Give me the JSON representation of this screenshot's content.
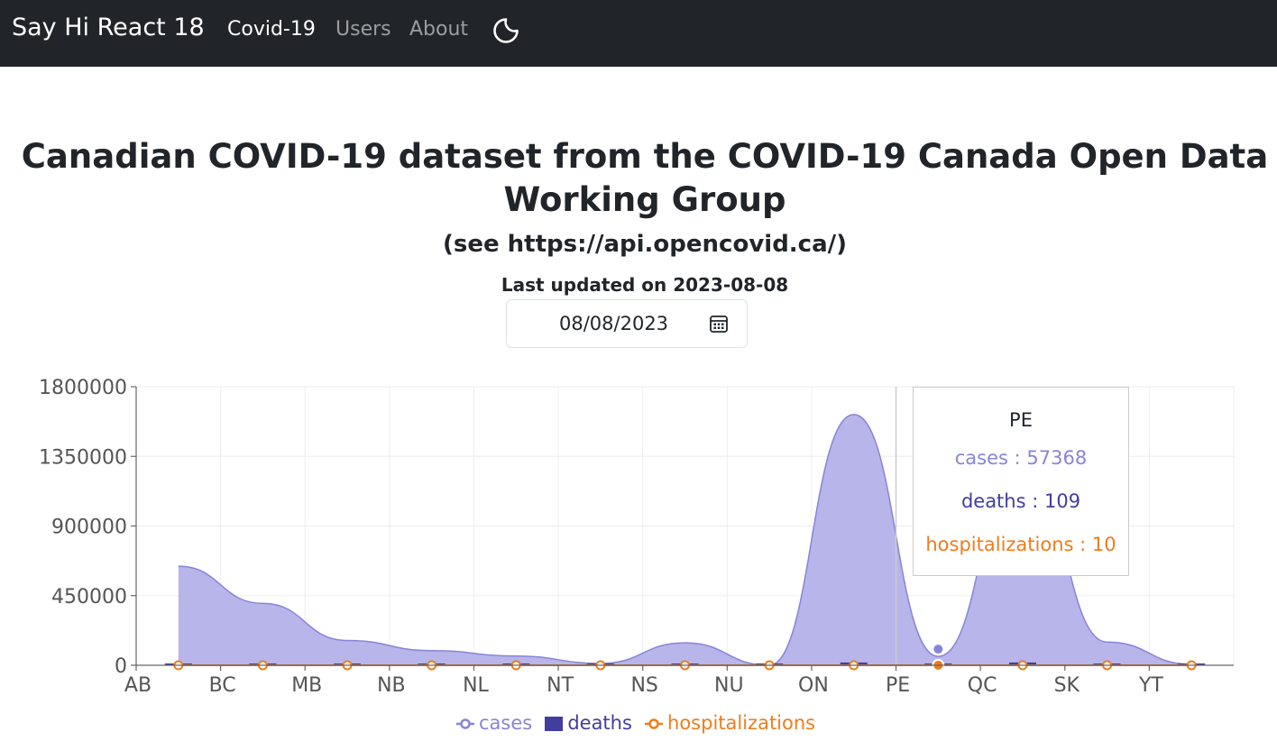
{
  "nav": {
    "brand": "Say Hi React 18",
    "links": [
      {
        "label": "Covid-19",
        "active": true
      },
      {
        "label": "Users",
        "active": false
      },
      {
        "label": "About",
        "active": false
      }
    ],
    "theme_icon": "moon-icon"
  },
  "page": {
    "title": "Canadian COVID-19 dataset from the COVID-19 Canada Open Data Working Group",
    "subtitle": "(see https://api.opencovid.ca/)",
    "updated": "Last updated on 2023-08-08",
    "date_value": "08/08/2023",
    "date_icon": "calendar-icon"
  },
  "chart_data": {
    "type": "area",
    "categories": [
      "AB",
      "BC",
      "MB",
      "NB",
      "NL",
      "NT",
      "NS",
      "NU",
      "ON",
      "PE",
      "QC",
      "SK",
      "YT"
    ],
    "ylim": [
      0,
      1800000
    ],
    "yticks": [
      "1800000",
      "1350000",
      "900000",
      "450000",
      "0"
    ],
    "series": [
      {
        "name": "cases",
        "kind": "area",
        "color": "#8884d8",
        "fill": "#b8b5ea",
        "values": [
          640000,
          400000,
          160000,
          95000,
          60000,
          12000,
          145000,
          0,
          1620000,
          57368,
          1320000,
          150000,
          6000
        ]
      },
      {
        "name": "deaths",
        "kind": "bar",
        "color": "#413ea0",
        "values": [
          5700,
          5200,
          2400,
          900,
          300,
          30,
          1400,
          20,
          18000,
          109,
          18000,
          2400,
          30
        ]
      },
      {
        "name": "hospitalizations",
        "kind": "line",
        "color": "#f07c1a",
        "values": [
          0,
          0,
          0,
          0,
          0,
          0,
          0,
          0,
          0,
          10,
          0,
          0,
          0
        ]
      }
    ],
    "tooltip": {
      "label": "PE",
      "items": [
        {
          "text": "cases : 57368",
          "color": "#8884d8"
        },
        {
          "text": "deaths : 109",
          "color": "#413ea0"
        },
        {
          "text": "hospitalizations : 10",
          "color": "#f07c1a"
        }
      ]
    },
    "legend": [
      {
        "label": "cases",
        "color": "#8884d8",
        "shape": "line-dot"
      },
      {
        "label": "deaths",
        "color": "#413ea0",
        "shape": "square"
      },
      {
        "label": "hospitalizations",
        "color": "#f07c1a",
        "shape": "line-dot"
      }
    ]
  }
}
